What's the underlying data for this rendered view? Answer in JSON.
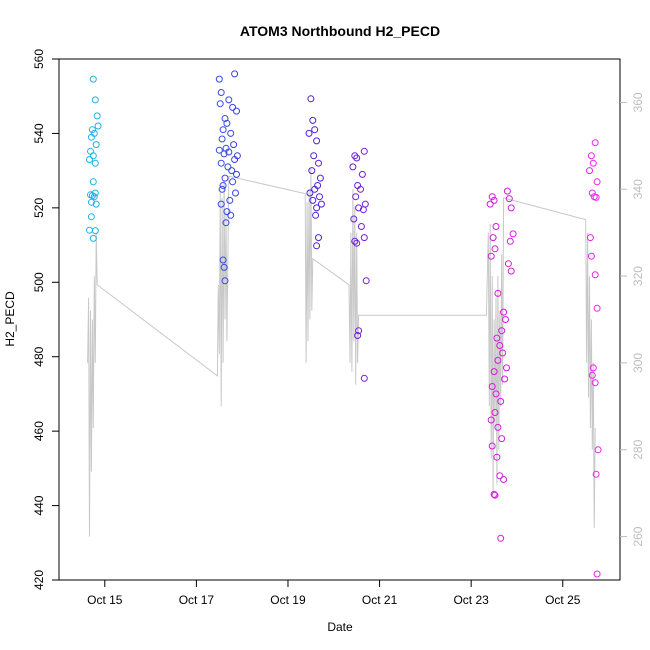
{
  "chart_data": {
    "type": "scatter",
    "title": "ATOM3 Northbound H2_PECD",
    "xlabel": "Date",
    "ylabel": "H2_PECD",
    "xlim": [
      "2023-10-14T00:00",
      "2023-10-26T06:00"
    ],
    "ylim": [
      420,
      560
    ],
    "y2lim": [
      250,
      370
    ],
    "xticks": [
      {
        "date": "2023-10-15T00:00",
        "label": "Oct 15"
      },
      {
        "date": "2023-10-17T00:00",
        "label": "Oct 17"
      },
      {
        "date": "2023-10-19T00:00",
        "label": "Oct 19"
      },
      {
        "date": "2023-10-21T00:00",
        "label": "Oct 21"
      },
      {
        "date": "2023-10-23T00:00",
        "label": "Oct 23"
      },
      {
        "date": "2023-10-25T00:00",
        "label": "Oct 25"
      }
    ],
    "yticks": [
      420,
      440,
      460,
      480,
      500,
      520,
      540,
      560
    ],
    "y2ticks": [
      260,
      280,
      300,
      320,
      340,
      360
    ],
    "grid": false,
    "point_color_scale": [
      "#1fb6e8",
      "#2f5bf0",
      "#4322d8",
      "#8a1ed6",
      "#d21ed8",
      "#ee22ee"
    ],
    "series": [
      {
        "type": "points",
        "color_by_time": true,
        "points": [
          [
            "2023-10-14T18:00",
            554.6
          ],
          [
            "2023-10-14T19:00",
            549
          ],
          [
            "2023-10-14T20:00",
            544.7
          ],
          [
            "2023-10-14T20:30",
            542
          ],
          [
            "2023-10-14T17:30",
            541
          ],
          [
            "2023-10-14T18:30",
            540
          ],
          [
            "2023-10-14T17:00",
            539
          ],
          [
            "2023-10-14T19:30",
            537
          ],
          [
            "2023-10-14T16:30",
            535.2
          ],
          [
            "2023-10-14T18:00",
            534
          ],
          [
            "2023-10-14T16:00",
            533
          ],
          [
            "2023-10-14T19:00",
            532
          ],
          [
            "2023-10-14T18:00",
            527
          ],
          [
            "2023-10-14T19:00",
            524
          ],
          [
            "2023-10-14T16:30",
            523.5
          ],
          [
            "2023-10-14T17:30",
            523.3
          ],
          [
            "2023-10-14T18:30",
            523
          ],
          [
            "2023-10-14T17:00",
            521.5
          ],
          [
            "2023-10-14T19:30",
            521
          ],
          [
            "2023-10-14T17:00",
            517.6
          ],
          [
            "2023-10-14T16:00",
            514
          ],
          [
            "2023-10-14T19:00",
            513.9
          ],
          [
            "2023-10-14T18:00",
            511.8
          ],
          [
            "2023-10-17T12:00",
            554.6
          ],
          [
            "2023-10-17T20:00",
            556
          ],
          [
            "2023-10-17T13:00",
            551
          ],
          [
            "2023-10-17T17:00",
            549
          ],
          [
            "2023-10-17T12:30",
            548
          ],
          [
            "2023-10-17T19:00",
            547
          ],
          [
            "2023-10-17T21:00",
            546
          ],
          [
            "2023-10-17T15:00",
            544
          ],
          [
            "2023-10-17T16:00",
            542.7
          ],
          [
            "2023-10-17T14:00",
            541
          ],
          [
            "2023-10-17T18:00",
            540
          ],
          [
            "2023-10-17T13:30",
            538.5
          ],
          [
            "2023-10-17T19:30",
            537
          ],
          [
            "2023-10-17T15:30",
            536
          ],
          [
            "2023-10-17T12:00",
            535.5
          ],
          [
            "2023-10-17T17:00",
            535
          ],
          [
            "2023-10-17T14:30",
            534.5
          ],
          [
            "2023-10-17T21:30",
            534
          ],
          [
            "2023-10-17T20:00",
            533
          ],
          [
            "2023-10-17T13:00",
            532
          ],
          [
            "2023-10-17T16:30",
            531
          ],
          [
            "2023-10-17T18:30",
            530
          ],
          [
            "2023-10-17T21:00",
            529
          ],
          [
            "2023-10-17T15:00",
            528
          ],
          [
            "2023-10-17T19:00",
            527
          ],
          [
            "2023-10-17T14:00",
            526
          ],
          [
            "2023-10-17T13:30",
            525
          ],
          [
            "2023-10-17T20:30",
            524
          ],
          [
            "2023-10-17T17:30",
            522
          ],
          [
            "2023-10-17T13:00",
            521
          ],
          [
            "2023-10-17T16:00",
            519
          ],
          [
            "2023-10-17T18:00",
            518
          ],
          [
            "2023-10-17T15:30",
            516
          ],
          [
            "2023-10-17T14:00",
            506
          ],
          [
            "2023-10-17T14:30",
            504
          ],
          [
            "2023-10-17T15:00",
            500.4
          ],
          [
            "2023-10-19T12:00",
            549.3
          ],
          [
            "2023-10-19T13:00",
            543.5
          ],
          [
            "2023-10-19T14:00",
            541
          ],
          [
            "2023-10-19T11:00",
            540
          ],
          [
            "2023-10-19T15:00",
            538
          ],
          [
            "2023-10-19T13:30",
            534
          ],
          [
            "2023-10-19T16:00",
            532
          ],
          [
            "2023-10-19T12:30",
            530
          ],
          [
            "2023-10-19T17:00",
            528
          ],
          [
            "2023-10-19T15:30",
            526
          ],
          [
            "2023-10-19T14:00",
            525
          ],
          [
            "2023-10-19T11:30",
            524
          ],
          [
            "2023-10-19T16:30",
            523
          ],
          [
            "2023-10-19T13:00",
            522
          ],
          [
            "2023-10-19T17:30",
            521
          ],
          [
            "2023-10-19T15:00",
            520
          ],
          [
            "2023-10-19T14:30",
            518
          ],
          [
            "2023-10-19T16:00",
            512
          ],
          [
            "2023-10-19T15:00",
            509.8
          ],
          [
            "2023-10-20T11:00",
            534
          ],
          [
            "2023-10-20T16:00",
            535.2
          ],
          [
            "2023-10-20T12:00",
            533.4
          ],
          [
            "2023-10-20T10:00",
            531
          ],
          [
            "2023-10-20T15:00",
            529
          ],
          [
            "2023-10-20T12:30",
            526
          ],
          [
            "2023-10-20T14:00",
            525
          ],
          [
            "2023-10-20T11:30",
            523
          ],
          [
            "2023-10-20T16:30",
            521
          ],
          [
            "2023-10-20T13:00",
            520
          ],
          [
            "2023-10-20T15:30",
            519.5
          ],
          [
            "2023-10-20T10:30",
            517
          ],
          [
            "2023-10-20T14:30",
            515
          ],
          [
            "2023-10-20T16:00",
            512
          ],
          [
            "2023-10-20T11:00",
            511
          ],
          [
            "2023-10-20T12:00",
            510.5
          ],
          [
            "2023-10-20T17:00",
            500.4
          ],
          [
            "2023-10-20T13:00",
            487
          ],
          [
            "2023-10-20T12:30",
            485.7
          ],
          [
            "2023-10-20T16:00",
            474.2
          ],
          [
            "2023-10-23T11:00",
            523
          ],
          [
            "2023-10-23T19:00",
            524.5
          ],
          [
            "2023-10-23T12:00",
            522
          ],
          [
            "2023-10-23T20:00",
            522.5
          ],
          [
            "2023-10-23T10:00",
            521
          ],
          [
            "2023-10-23T21:00",
            520
          ],
          [
            "2023-10-23T13:00",
            515
          ],
          [
            "2023-10-23T22:00",
            513
          ],
          [
            "2023-10-23T11:30",
            512
          ],
          [
            "2023-10-23T20:30",
            511
          ],
          [
            "2023-10-23T12:30",
            509
          ],
          [
            "2023-10-23T19:30",
            505
          ],
          [
            "2023-10-23T10:30",
            507
          ],
          [
            "2023-10-23T21:00",
            503
          ],
          [
            "2023-10-23T14:00",
            497
          ],
          [
            "2023-10-23T17:00",
            492
          ],
          [
            "2023-10-23T18:00",
            490
          ],
          [
            "2023-10-23T16:00",
            487
          ],
          [
            "2023-10-23T13:30",
            485
          ],
          [
            "2023-10-23T15:00",
            483
          ],
          [
            "2023-10-23T16:30",
            481
          ],
          [
            "2023-10-23T14:00",
            479
          ],
          [
            "2023-10-23T18:30",
            477
          ],
          [
            "2023-10-23T12:00",
            476
          ],
          [
            "2023-10-23T17:30",
            474
          ],
          [
            "2023-10-23T11:00",
            472
          ],
          [
            "2023-10-23T13:00",
            470
          ],
          [
            "2023-10-23T15:30",
            468
          ],
          [
            "2023-10-23T12:30",
            465
          ],
          [
            "2023-10-23T10:30",
            463
          ],
          [
            "2023-10-23T14:00",
            461
          ],
          [
            "2023-10-23T16:00",
            458
          ],
          [
            "2023-10-23T11:00",
            456
          ],
          [
            "2023-10-23T13:30",
            453
          ],
          [
            "2023-10-23T15:00",
            448
          ],
          [
            "2023-10-23T17:00",
            447
          ],
          [
            "2023-10-23T12:00",
            443
          ],
          [
            "2023-10-23T12:30",
            442.8
          ],
          [
            "2023-10-23T15:30",
            431.2
          ],
          [
            "2023-10-25T15:00",
            534
          ],
          [
            "2023-10-25T17:00",
            537.5
          ],
          [
            "2023-10-25T16:00",
            532
          ],
          [
            "2023-10-25T14:00",
            530
          ],
          [
            "2023-10-25T18:00",
            527
          ],
          [
            "2023-10-25T15:30",
            524
          ],
          [
            "2023-10-25T16:30",
            523
          ],
          [
            "2023-10-25T17:30",
            522.8
          ],
          [
            "2023-10-25T14:30",
            512
          ],
          [
            "2023-10-25T15:00",
            507
          ],
          [
            "2023-10-25T17:00",
            502
          ],
          [
            "2023-10-25T18:00",
            493
          ],
          [
            "2023-10-25T16:00",
            477
          ],
          [
            "2023-10-25T15:30",
            475
          ],
          [
            "2023-10-25T17:00",
            473
          ],
          [
            "2023-10-25T18:30",
            455
          ],
          [
            "2023-10-25T17:30",
            448.4
          ],
          [
            "2023-10-25T18:00",
            421.6
          ]
        ]
      },
      {
        "type": "line",
        "axis": "right",
        "color": "#c8c8c8",
        "points": [
          [
            "2023-10-14T15:00",
            300
          ],
          [
            "2023-10-14T15:30",
            315
          ],
          [
            "2023-10-14T16:00",
            260
          ],
          [
            "2023-10-14T16:30",
            312
          ],
          [
            "2023-10-14T17:00",
            275
          ],
          [
            "2023-10-14T17:30",
            310
          ],
          [
            "2023-10-14T18:00",
            285
          ],
          [
            "2023-10-14T18:30",
            320
          ],
          [
            "2023-10-14T19:00",
            300
          ],
          [
            "2023-10-14T19:30",
            330
          ],
          [
            "2023-10-14T20:00",
            318
          ],
          [
            "2023-10-17T11:00",
            297
          ],
          [
            "2023-10-17T11:30",
            318
          ],
          [
            "2023-10-17T12:00",
            302
          ],
          [
            "2023-10-17T12:30",
            340
          ],
          [
            "2023-10-17T13:00",
            290
          ],
          [
            "2023-10-17T13:30",
            338
          ],
          [
            "2023-10-17T14:00",
            300
          ],
          [
            "2023-10-17T14:30",
            342
          ],
          [
            "2023-10-17T15:00",
            310
          ],
          [
            "2023-10-17T15:30",
            335
          ],
          [
            "2023-10-17T16:00",
            305
          ],
          [
            "2023-10-17T17:00",
            343
          ],
          [
            "2023-10-19T09:00",
            339
          ],
          [
            "2023-10-19T09:30",
            300
          ],
          [
            "2023-10-19T10:00",
            337
          ],
          [
            "2023-10-19T10:30",
            305
          ],
          [
            "2023-10-19T11:00",
            340
          ],
          [
            "2023-10-19T11:30",
            310
          ],
          [
            "2023-10-19T12:00",
            345
          ],
          [
            "2023-10-19T12:30",
            312
          ],
          [
            "2023-10-19T13:00",
            324
          ],
          [
            "2023-10-20T08:00",
            318
          ],
          [
            "2023-10-20T08:30",
            300
          ],
          [
            "2023-10-20T09:00",
            330
          ],
          [
            "2023-10-20T09:30",
            298
          ],
          [
            "2023-10-20T10:00",
            340
          ],
          [
            "2023-10-20T10:30",
            305
          ],
          [
            "2023-10-20T11:00",
            336
          ],
          [
            "2023-10-20T11:30",
            295
          ],
          [
            "2023-10-20T12:00",
            330
          ],
          [
            "2023-10-20T12:30",
            300
          ],
          [
            "2023-10-20T13:00",
            311
          ],
          [
            "2023-10-23T08:00",
            311
          ],
          [
            "2023-10-23T09:00",
            330
          ],
          [
            "2023-10-23T09:30",
            290
          ],
          [
            "2023-10-23T10:00",
            332
          ],
          [
            "2023-10-23T10:30",
            278
          ],
          [
            "2023-10-23T11:00",
            320
          ],
          [
            "2023-10-23T11:30",
            270
          ],
          [
            "2023-10-23T12:00",
            310
          ],
          [
            "2023-10-23T12:30",
            285
          ],
          [
            "2023-10-23T13:00",
            315
          ],
          [
            "2023-10-23T13:30",
            272
          ],
          [
            "2023-10-23T14:00",
            320
          ],
          [
            "2023-10-23T14:30",
            280
          ],
          [
            "2023-10-23T15:00",
            312
          ],
          [
            "2023-10-23T15:30",
            290
          ],
          [
            "2023-10-23T16:00",
            325
          ],
          [
            "2023-10-23T16:30",
            295
          ],
          [
            "2023-10-23T17:00",
            338
          ],
          [
            "2023-10-25T12:00",
            333
          ],
          [
            "2023-10-25T12:30",
            300
          ],
          [
            "2023-10-25T13:00",
            330
          ],
          [
            "2023-10-25T13:30",
            292
          ],
          [
            "2023-10-25T14:00",
            320
          ],
          [
            "2023-10-25T14:30",
            285
          ],
          [
            "2023-10-25T15:00",
            310
          ],
          [
            "2023-10-25T15:30",
            280
          ],
          [
            "2023-10-25T16:00",
            300
          ],
          [
            "2023-10-25T16:30",
            262
          ],
          [
            "2023-10-25T17:00",
            285
          ]
        ]
      }
    ]
  }
}
